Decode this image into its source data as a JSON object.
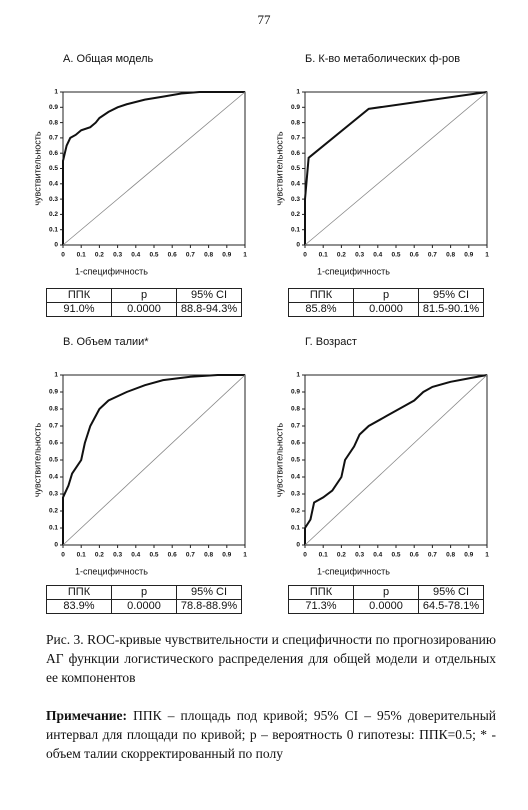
{
  "page_number": "77",
  "chart_data": [
    {
      "type": "line",
      "title": "А. Общая модель",
      "x_label": "1-специфичность",
      "y_label": "чувствительность",
      "xlim": [
        0,
        1
      ],
      "ylim": [
        0,
        1
      ],
      "xticks": [
        0,
        0.1,
        0.2,
        0.3,
        0.4,
        0.5,
        0.6,
        0.7,
        0.8,
        0.9,
        1
      ],
      "yticks": [
        0,
        0.1,
        0.2,
        0.3,
        0.4,
        0.5,
        0.6,
        0.7,
        0.8,
        0.9,
        1
      ],
      "series": [
        {
          "color": "#111111",
          "x": [
            0,
            0,
            0.01,
            0.02,
            0.04,
            0.07,
            0.1,
            0.15,
            0.18,
            0.2,
            0.25,
            0.3,
            0.35,
            0.45,
            0.55,
            0.65,
            0.75,
            1
          ],
          "values": [
            0,
            0.55,
            0.6,
            0.65,
            0.7,
            0.72,
            0.75,
            0.77,
            0.8,
            0.83,
            0.87,
            0.9,
            0.92,
            0.95,
            0.97,
            0.99,
            1,
            1
          ]
        },
        {
          "color": "#888888",
          "x": [
            0,
            1
          ],
          "values": [
            0,
            1
          ]
        }
      ]
    },
    {
      "type": "line",
      "title": "Б. К-во метаболических ф-ров",
      "x_label": "1-специфичность",
      "y_label": "чувствительность",
      "xlim": [
        0,
        1
      ],
      "ylim": [
        0,
        1
      ],
      "xticks": [
        0,
        0.1,
        0.2,
        0.3,
        0.4,
        0.5,
        0.6,
        0.7,
        0.8,
        0.9,
        1
      ],
      "yticks": [
        0,
        0.1,
        0.2,
        0.3,
        0.4,
        0.5,
        0.6,
        0.7,
        0.8,
        0.9,
        1
      ],
      "series": [
        {
          "color": "#111111",
          "x": [
            0,
            0,
            0.02,
            0.35,
            1
          ],
          "values": [
            0,
            0.3,
            0.57,
            0.89,
            1
          ]
        },
        {
          "color": "#888888",
          "x": [
            0,
            1
          ],
          "values": [
            0,
            1
          ]
        }
      ]
    },
    {
      "type": "line",
      "title": "В. Объем талии*",
      "x_label": "1-специфичность",
      "y_label": "чувствительность",
      "xlim": [
        0,
        1
      ],
      "ylim": [
        0,
        1
      ],
      "xticks": [
        0,
        0.1,
        0.2,
        0.3,
        0.4,
        0.5,
        0.6,
        0.7,
        0.8,
        0.9,
        1
      ],
      "yticks": [
        0,
        0.1,
        0.2,
        0.3,
        0.4,
        0.5,
        0.6,
        0.7,
        0.8,
        0.9,
        1
      ],
      "series": [
        {
          "color": "#111111",
          "x": [
            0,
            0,
            0.03,
            0.05,
            0.1,
            0.12,
            0.15,
            0.2,
            0.25,
            0.35,
            0.45,
            0.55,
            0.7,
            0.85,
            1
          ],
          "values": [
            0,
            0.28,
            0.35,
            0.42,
            0.5,
            0.6,
            0.7,
            0.8,
            0.85,
            0.9,
            0.94,
            0.97,
            0.99,
            1,
            1
          ]
        },
        {
          "color": "#888888",
          "x": [
            0,
            1
          ],
          "values": [
            0,
            1
          ]
        }
      ]
    },
    {
      "type": "line",
      "title": "Г. Возраст",
      "x_label": "1-специфичность",
      "y_label": "чувствительность",
      "xlim": [
        0,
        1
      ],
      "ylim": [
        0,
        1
      ],
      "xticks": [
        0,
        0.1,
        0.2,
        0.3,
        0.4,
        0.5,
        0.6,
        0.7,
        0.8,
        0.9,
        1
      ],
      "yticks": [
        0,
        0.1,
        0.2,
        0.3,
        0.4,
        0.5,
        0.6,
        0.7,
        0.8,
        0.9,
        1
      ],
      "series": [
        {
          "color": "#111111",
          "x": [
            0,
            0,
            0.03,
            0.05,
            0.1,
            0.15,
            0.2,
            0.22,
            0.27,
            0.3,
            0.35,
            0.45,
            0.55,
            0.6,
            0.65,
            0.7,
            0.8,
            0.9,
            1
          ],
          "values": [
            0,
            0.1,
            0.15,
            0.25,
            0.28,
            0.32,
            0.4,
            0.5,
            0.58,
            0.65,
            0.7,
            0.76,
            0.82,
            0.85,
            0.9,
            0.93,
            0.96,
            0.98,
            1
          ]
        },
        {
          "color": "#888888",
          "x": [
            0,
            1
          ],
          "values": [
            0,
            1
          ]
        }
      ]
    }
  ],
  "tables": [
    {
      "header": [
        "ППК",
        "p",
        "95% CI"
      ],
      "rows": [
        [
          "91.0%",
          "0.0000",
          "88.8-94.3%"
        ]
      ]
    },
    {
      "header": [
        "ППК",
        "p",
        "95% CI"
      ],
      "rows": [
        [
          "85.8%",
          "0.0000",
          "81.5-90.1%"
        ]
      ]
    },
    {
      "header": [
        "ППК",
        "p",
        "95% CI"
      ],
      "rows": [
        [
          "83.9%",
          "0.0000",
          "78.8-88.9%"
        ]
      ]
    },
    {
      "header": [
        "ППК",
        "p",
        "95% CI"
      ],
      "rows": [
        [
          "71.3%",
          "0.0000",
          "64.5-78.1%"
        ]
      ]
    }
  ],
  "caption": "Рис. 3. ROC-кривые чувствительности и специфичности по прогнозированию АГ функции логистического распределения для общей модели и отдельных ее компонентов",
  "note": {
    "label": "Примечание:",
    "text": "ППК – площадь под кривой; 95% CI – 95% доверительный интервал для площади по кривой; p – вероятность 0 гипотезы: ППК=0.5; * - объем талии скорректированный по полу"
  }
}
